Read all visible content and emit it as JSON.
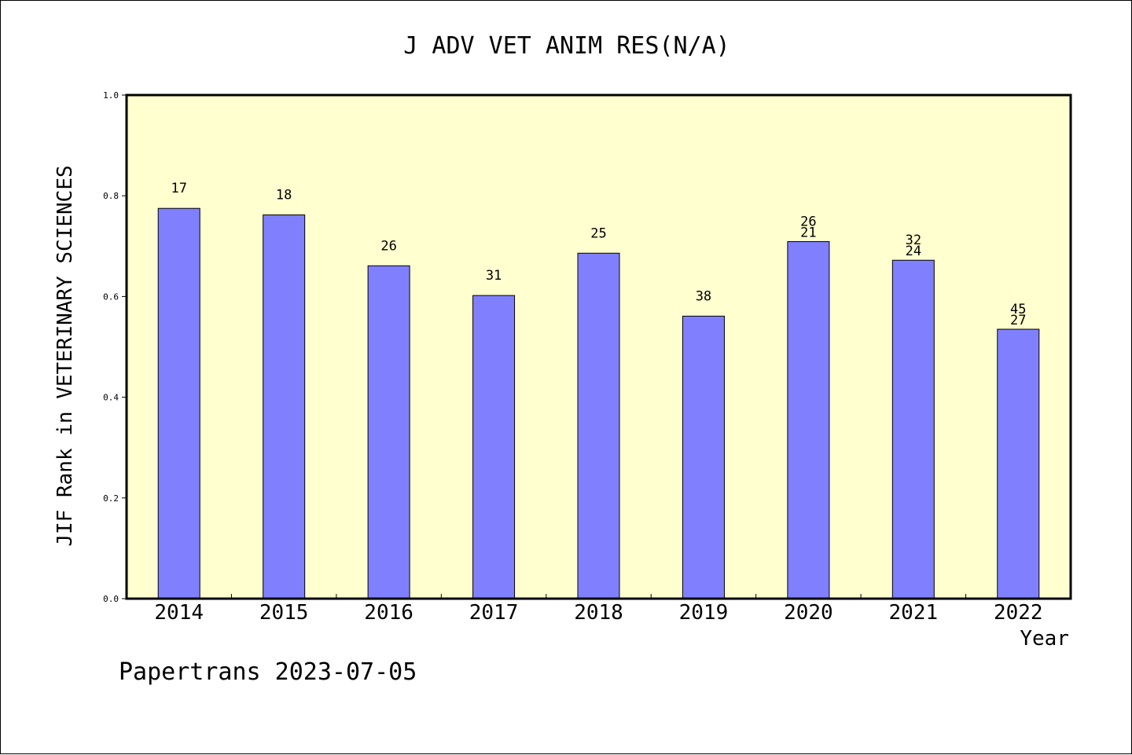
{
  "chart_data": {
    "type": "bar",
    "title": "J ADV VET ANIM RES(N/A)",
    "ylabel": "JIF Rank in VETERINARY SCIENCES",
    "xlabel": "Year",
    "categories": [
      "2014",
      "2015",
      "2016",
      "2017",
      "2018",
      "2019",
      "2020",
      "2021",
      "2022"
    ],
    "values": [
      0.775,
      0.762,
      0.661,
      0.602,
      0.686,
      0.561,
      0.709,
      0.672,
      0.535
    ],
    "bar_labels": [
      [
        "17"
      ],
      [
        "18"
      ],
      [
        "26"
      ],
      [
        "31"
      ],
      [
        "25"
      ],
      [
        "38"
      ],
      [
        "26",
        "21"
      ],
      [
        "32",
        "24"
      ],
      [
        "45",
        "27"
      ]
    ],
    "ylim": [
      0,
      1.0
    ],
    "yticks": [
      "0.0",
      "0.2",
      "0.4",
      "0.6",
      "0.8",
      "1.0"
    ],
    "grid": false,
    "colors": {
      "plot_background": "#ffffd0",
      "bar_fill": "#8080ff",
      "bar_stroke": "#000000"
    }
  },
  "footer": {
    "credit": "Papertrans 2023-07-05"
  }
}
